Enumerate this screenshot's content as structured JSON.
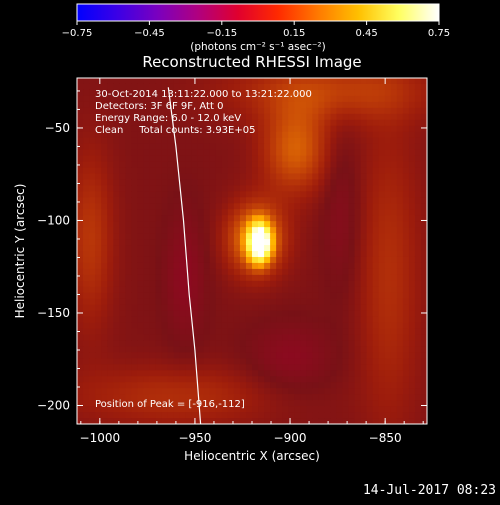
{
  "colorbar": {
    "ticks": [
      "-0.75",
      "-0.45",
      "-0.15",
      "0.15",
      "0.45",
      "0.75"
    ],
    "unit_label": "(photons cm⁻² s⁻¹ asec⁻²)",
    "range": [
      -0.75,
      0.75
    ],
    "colormap": [
      "#0000ff",
      "#3b00e6",
      "#7a00bf",
      "#b00080",
      "#e0002e",
      "#ff2a00",
      "#ff7a00",
      "#ffc000",
      "#ffff60",
      "#ffffff"
    ]
  },
  "annotations": {
    "line1": "30-Oct-2014 13:11:22.000 to 13:21:22.000",
    "line2": "Detectors: 3F 6F 9F, Att 0",
    "line3": "Energy Range: 6.0 - 12.0 keV",
    "line4": "Clean     Total counts: 3.93E+05",
    "peak": "Position of Peak = [-916,-112]"
  },
  "footer": {
    "timestamp": "14-Jul-2017 08:23"
  },
  "chart_data": {
    "type": "heatmap",
    "title": "Reconstructed RHESSI Image",
    "xlabel": "Heliocentric X (arcsec)",
    "ylabel": "Heliocentric Y (arcsec)",
    "xlim": [
      -1012,
      -828
    ],
    "ylim": [
      -210,
      -23
    ],
    "x_ticks": [
      {
        "value": -1000,
        "label": "−1000"
      },
      {
        "value": -950,
        "label": "−950"
      },
      {
        "value": -900,
        "label": "−900"
      },
      {
        "value": -850,
        "label": "−850"
      }
    ],
    "y_ticks": [
      {
        "value": -50,
        "label": "−50"
      },
      {
        "value": -100,
        "label": "−100"
      },
      {
        "value": -150,
        "label": "−150"
      },
      {
        "value": -200,
        "label": "−200"
      }
    ],
    "peak_position": [
      -916,
      -112
    ],
    "solar_limb": [
      [
        -964,
        -28
      ],
      [
        -960,
        -60
      ],
      [
        -956,
        -100
      ],
      [
        -953,
        -140
      ],
      [
        -950,
        -170
      ],
      [
        -947,
        -210
      ]
    ],
    "background_color": "#4a1016",
    "emission_features": [
      {
        "x": -916,
        "y": -112,
        "sx": 4,
        "sy": 7,
        "peak": 0.75
      },
      {
        "x": -918,
        "y": -110,
        "sx": 11,
        "sy": 14,
        "peak": 0.3
      },
      {
        "x": -897,
        "y": -62,
        "sx": 13,
        "sy": 17,
        "peak": 0.22
      },
      {
        "x": -880,
        "y": -30,
        "sx": 38,
        "sy": 12,
        "peak": 0.16
      },
      {
        "x": -1005,
        "y": -110,
        "sx": 9,
        "sy": 35,
        "peak": 0.14
      },
      {
        "x": -960,
        "y": -195,
        "sx": 40,
        "sy": 12,
        "peak": 0.12
      },
      {
        "x": -848,
        "y": -130,
        "sx": 12,
        "sy": 60,
        "peak": 0.12
      },
      {
        "x": -955,
        "y": -130,
        "sx": 8,
        "sy": 26,
        "peak": -0.1
      },
      {
        "x": -900,
        "y": -175,
        "sx": 16,
        "sy": 14,
        "peak": -0.1
      },
      {
        "x": -873,
        "y": -95,
        "sx": 7,
        "sy": 32,
        "peak": -0.08
      }
    ]
  }
}
